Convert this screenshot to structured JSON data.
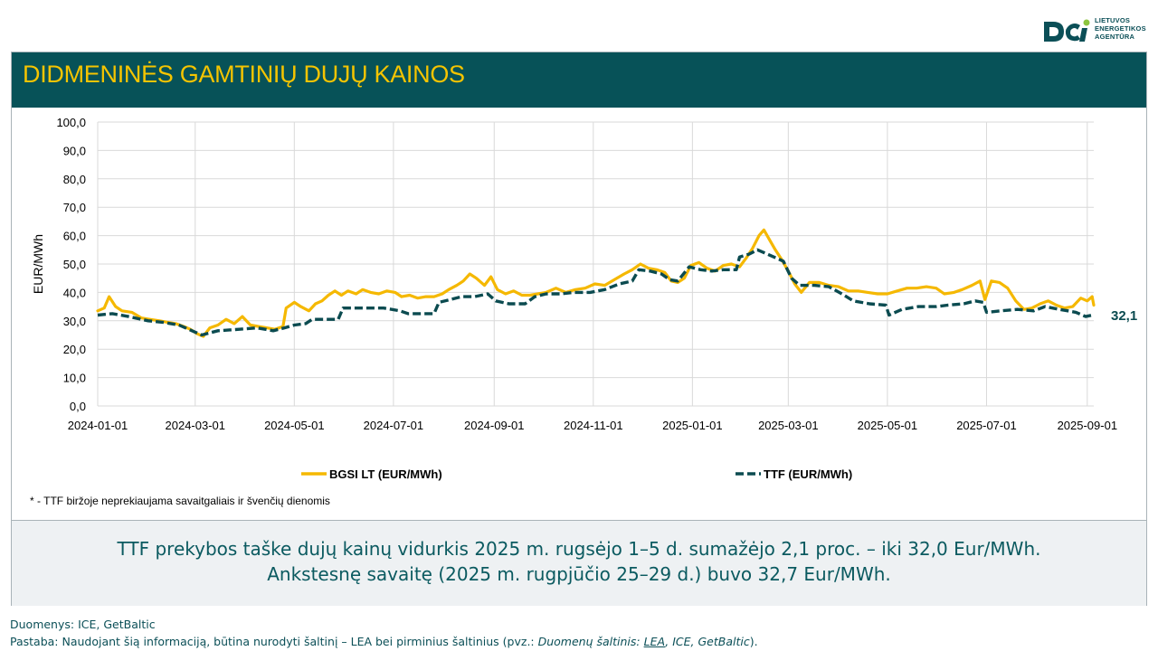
{
  "logo": {
    "lines": [
      "LIETUVOS",
      "ENERGETIKOS",
      "AGENTŪRA"
    ],
    "colors": {
      "primary": "#0b4f57",
      "accent": "#8dc63f"
    }
  },
  "banner": {
    "title": "DIDMENINĖS GAMTINIŲ DUJŲ KAINOS"
  },
  "colors": {
    "banner_bg": "#075258",
    "title": "#f5c400",
    "bgsi": "#f5b800",
    "ttf": "#0b4b50"
  },
  "chart_data": {
    "type": "line",
    "title": "",
    "ylabel": "EUR/MWh",
    "ylim": [
      0,
      100
    ],
    "yticks": [
      "0,0",
      "10,0",
      "20,0",
      "30,0",
      "40,0",
      "50,0",
      "60,0",
      "70,0",
      "80,0",
      "90,0",
      "100,0"
    ],
    "xlim": [
      "2024-01-01",
      "2025-09-05"
    ],
    "xticks": [
      "2024-01-01",
      "2024-03-01",
      "2024-05-01",
      "2024-07-01",
      "2024-09-01",
      "2024-11-01",
      "2025-01-01",
      "2025-03-01",
      "2025-05-01",
      "2025-07-01",
      "2025-09-01"
    ],
    "grid": true,
    "legend": "bottom",
    "end_label": "32,1",
    "series": [
      {
        "name": "BGSI LT (EUR/MWh)",
        "style": "solid",
        "points": [
          [
            "2024-01-01",
            33.5
          ],
          [
            "2024-01-05",
            34.5
          ],
          [
            "2024-01-08",
            38.5
          ],
          [
            "2024-01-12",
            35.0
          ],
          [
            "2024-01-16",
            33.5
          ],
          [
            "2024-01-22",
            33.0
          ],
          [
            "2024-01-28",
            31.0
          ],
          [
            "2024-02-02",
            30.5
          ],
          [
            "2024-02-08",
            30.0
          ],
          [
            "2024-02-13",
            29.5
          ],
          [
            "2024-02-18",
            29.0
          ],
          [
            "2024-02-23",
            28.0
          ],
          [
            "2024-02-27",
            27.0
          ],
          [
            "2024-03-02",
            25.5
          ],
          [
            "2024-03-06",
            24.5
          ],
          [
            "2024-03-10",
            27.5
          ],
          [
            "2024-03-15",
            28.5
          ],
          [
            "2024-03-20",
            30.5
          ],
          [
            "2024-03-25",
            29.0
          ],
          [
            "2024-03-30",
            31.5
          ],
          [
            "2024-04-04",
            28.5
          ],
          [
            "2024-04-09",
            28.0
          ],
          [
            "2024-04-14",
            27.5
          ],
          [
            "2024-04-19",
            27.0
          ],
          [
            "2024-04-24",
            28.0
          ],
          [
            "2024-04-26",
            34.5
          ],
          [
            "2024-05-01",
            36.5
          ],
          [
            "2024-05-05",
            35.0
          ],
          [
            "2024-05-10",
            33.5
          ],
          [
            "2024-05-14",
            36.0
          ],
          [
            "2024-05-18",
            37.0
          ],
          [
            "2024-05-22",
            39.0
          ],
          [
            "2024-05-26",
            40.5
          ],
          [
            "2024-05-30",
            39.0
          ],
          [
            "2024-06-03",
            40.5
          ],
          [
            "2024-06-08",
            39.5
          ],
          [
            "2024-06-12",
            41.0
          ],
          [
            "2024-06-17",
            40.0
          ],
          [
            "2024-06-22",
            39.5
          ],
          [
            "2024-06-27",
            40.5
          ],
          [
            "2024-07-02",
            40.0
          ],
          [
            "2024-07-06",
            38.5
          ],
          [
            "2024-07-11",
            39.0
          ],
          [
            "2024-07-16",
            38.0
          ],
          [
            "2024-07-21",
            38.5
          ],
          [
            "2024-07-26",
            38.5
          ],
          [
            "2024-07-31",
            39.5
          ],
          [
            "2024-08-04",
            41.0
          ],
          [
            "2024-08-09",
            42.5
          ],
          [
            "2024-08-13",
            44.0
          ],
          [
            "2024-08-17",
            46.5
          ],
          [
            "2024-08-21",
            45.0
          ],
          [
            "2024-08-26",
            42.5
          ],
          [
            "2024-08-30",
            45.5
          ],
          [
            "2024-09-03",
            41.0
          ],
          [
            "2024-09-08",
            39.5
          ],
          [
            "2024-09-13",
            40.5
          ],
          [
            "2024-09-18",
            39.0
          ],
          [
            "2024-09-23",
            39.0
          ],
          [
            "2024-09-28",
            39.5
          ],
          [
            "2024-10-03",
            40.0
          ],
          [
            "2024-10-09",
            41.5
          ],
          [
            "2024-10-15",
            40.0
          ],
          [
            "2024-10-21",
            41.0
          ],
          [
            "2024-10-27",
            41.5
          ],
          [
            "2024-11-02",
            43.0
          ],
          [
            "2024-11-08",
            42.5
          ],
          [
            "2024-11-14",
            44.5
          ],
          [
            "2024-11-20",
            46.5
          ],
          [
            "2024-11-25",
            48.0
          ],
          [
            "2024-11-30",
            50.0
          ],
          [
            "2024-12-05",
            48.5
          ],
          [
            "2024-12-10",
            48.0
          ],
          [
            "2024-12-15",
            47.0
          ],
          [
            "2024-12-19",
            44.0
          ],
          [
            "2024-12-23",
            43.5
          ],
          [
            "2024-12-27",
            45.0
          ],
          [
            "2024-12-31",
            49.5
          ],
          [
            "2025-01-05",
            50.5
          ],
          [
            "2025-01-10",
            48.5
          ],
          [
            "2025-01-15",
            47.5
          ],
          [
            "2025-01-20",
            49.5
          ],
          [
            "2025-01-25",
            50.0
          ],
          [
            "2025-01-30",
            49.0
          ],
          [
            "2025-02-03",
            52.0
          ],
          [
            "2025-02-07",
            55.5
          ],
          [
            "2025-02-11",
            60.0
          ],
          [
            "2025-02-14",
            62.0
          ],
          [
            "2025-02-18",
            58.0
          ],
          [
            "2025-02-21",
            55.0
          ],
          [
            "2025-02-25",
            51.5
          ],
          [
            "2025-03-01",
            47.5
          ],
          [
            "2025-03-05",
            43.0
          ],
          [
            "2025-03-09",
            40.0
          ],
          [
            "2025-03-14",
            43.5
          ],
          [
            "2025-03-20",
            43.5
          ],
          [
            "2025-03-26",
            42.5
          ],
          [
            "2025-04-01",
            42.0
          ],
          [
            "2025-04-07",
            40.5
          ],
          [
            "2025-04-13",
            40.5
          ],
          [
            "2025-04-19",
            40.0
          ],
          [
            "2025-04-25",
            39.5
          ],
          [
            "2025-05-01",
            39.5
          ],
          [
            "2025-05-07",
            40.5
          ],
          [
            "2025-05-13",
            41.5
          ],
          [
            "2025-05-19",
            41.5
          ],
          [
            "2025-05-25",
            42.0
          ],
          [
            "2025-05-31",
            41.5
          ],
          [
            "2025-06-05",
            39.5
          ],
          [
            "2025-06-11",
            40.0
          ],
          [
            "2025-06-16",
            41.0
          ],
          [
            "2025-06-22",
            42.5
          ],
          [
            "2025-06-27",
            44.0
          ],
          [
            "2025-06-30",
            37.5
          ],
          [
            "2025-07-04",
            44.0
          ],
          [
            "2025-07-09",
            43.5
          ],
          [
            "2025-07-14",
            41.5
          ],
          [
            "2025-07-19",
            37.0
          ],
          [
            "2025-07-24",
            34.0
          ],
          [
            "2025-07-29",
            34.5
          ],
          [
            "2025-08-03",
            36.0
          ],
          [
            "2025-08-08",
            37.0
          ],
          [
            "2025-08-13",
            35.5
          ],
          [
            "2025-08-18",
            34.5
          ],
          [
            "2025-08-23",
            35.0
          ],
          [
            "2025-08-28",
            38.0
          ],
          [
            "2025-09-01",
            37.0
          ],
          [
            "2025-09-04",
            38.5
          ],
          [
            "2025-09-05",
            35.5
          ]
        ]
      },
      {
        "name": "TTF (EUR/MWh)",
        "style": "dashed",
        "points": [
          [
            "2024-01-01",
            32.0
          ],
          [
            "2024-01-10",
            32.5
          ],
          [
            "2024-01-20",
            31.5
          ],
          [
            "2024-02-01",
            30.0
          ],
          [
            "2024-02-10",
            29.5
          ],
          [
            "2024-02-20",
            28.5
          ],
          [
            "2024-02-28",
            26.5
          ],
          [
            "2024-03-05",
            25.0
          ],
          [
            "2024-03-15",
            26.5
          ],
          [
            "2024-03-28",
            27.0
          ],
          [
            "2024-04-08",
            27.5
          ],
          [
            "2024-04-18",
            26.5
          ],
          [
            "2024-04-25",
            27.5
          ],
          [
            "2024-05-01",
            28.5
          ],
          [
            "2024-05-08",
            29.0
          ],
          [
            "2024-05-12",
            30.5
          ],
          [
            "2024-05-20",
            30.5
          ],
          [
            "2024-05-28",
            30.5
          ],
          [
            "2024-05-31",
            34.5
          ],
          [
            "2024-06-06",
            34.5
          ],
          [
            "2024-06-15",
            34.5
          ],
          [
            "2024-06-25",
            34.5
          ],
          [
            "2024-07-05",
            33.5
          ],
          [
            "2024-07-10",
            32.5
          ],
          [
            "2024-07-18",
            32.5
          ],
          [
            "2024-07-26",
            32.5
          ],
          [
            "2024-07-29",
            36.5
          ],
          [
            "2024-08-05",
            37.5
          ],
          [
            "2024-08-12",
            38.5
          ],
          [
            "2024-08-20",
            38.5
          ],
          [
            "2024-08-28",
            39.5
          ],
          [
            "2024-09-02",
            37.0
          ],
          [
            "2024-09-10",
            36.0
          ],
          [
            "2024-09-20",
            36.0
          ],
          [
            "2024-09-26",
            38.5
          ],
          [
            "2024-10-03",
            39.5
          ],
          [
            "2024-10-12",
            39.5
          ],
          [
            "2024-10-20",
            40.0
          ],
          [
            "2024-10-30",
            40.0
          ],
          [
            "2024-11-08",
            41.0
          ],
          [
            "2024-11-17",
            43.0
          ],
          [
            "2024-11-25",
            44.0
          ],
          [
            "2024-11-29",
            48.0
          ],
          [
            "2024-12-06",
            47.5
          ],
          [
            "2024-12-13",
            46.5
          ],
          [
            "2024-12-18",
            44.5
          ],
          [
            "2024-12-23",
            44.0
          ],
          [
            "2024-12-30",
            49.0
          ],
          [
            "2025-01-06",
            48.0
          ],
          [
            "2025-01-13",
            47.5
          ],
          [
            "2025-01-20",
            48.0
          ],
          [
            "2025-01-28",
            48.0
          ],
          [
            "2025-01-30",
            52.5
          ],
          [
            "2025-02-05",
            53.5
          ],
          [
            "2025-02-10",
            55.0
          ],
          [
            "2025-02-16",
            53.5
          ],
          [
            "2025-02-22",
            52.0
          ],
          [
            "2025-02-26",
            51.0
          ],
          [
            "2025-03-03",
            45.0
          ],
          [
            "2025-03-08",
            42.5
          ],
          [
            "2025-03-17",
            42.5
          ],
          [
            "2025-03-26",
            42.0
          ],
          [
            "2025-04-03",
            39.5
          ],
          [
            "2025-04-10",
            37.0
          ],
          [
            "2025-04-20",
            36.0
          ],
          [
            "2025-04-30",
            35.5
          ],
          [
            "2025-05-02",
            32.0
          ],
          [
            "2025-05-10",
            34.0
          ],
          [
            "2025-05-20",
            35.0
          ],
          [
            "2025-05-31",
            35.0
          ],
          [
            "2025-06-07",
            35.5
          ],
          [
            "2025-06-17",
            36.0
          ],
          [
            "2025-06-24",
            37.0
          ],
          [
            "2025-06-29",
            36.5
          ],
          [
            "2025-07-01",
            33.0
          ],
          [
            "2025-07-10",
            33.5
          ],
          [
            "2025-07-20",
            34.0
          ],
          [
            "2025-07-30",
            33.5
          ],
          [
            "2025-08-06",
            35.0
          ],
          [
            "2025-08-15",
            34.0
          ],
          [
            "2025-08-25",
            33.0
          ],
          [
            "2025-08-31",
            31.5
          ],
          [
            "2025-09-05",
            32.1
          ]
        ]
      }
    ]
  },
  "footnote": "* - TTF biržoje neprekiaujama savaitgaliais ir švenčių dienomis",
  "summary": {
    "line1": "TTF prekybos taške dujų kainų vidurkis 2025 m. rugsėjo 1–5 d. sumažėjo 2,1 proc. – iki 32,0 Eur/MWh.",
    "line2": "Ankstesnę savaitę (2025 m. rugpjūčio 25–29 d.) buvo 32,7 Eur/MWh."
  },
  "sources": {
    "line1": "Duomenys: ICE, GetBaltic",
    "line2_prefix": "Pastaba: Naudojant šią informaciją, būtina nurodyti šaltinį – LEA bei pirminius šaltinius (pvz.: ",
    "line2_italic": "Duomenų šaltinis: ",
    "line2_link": "LEA",
    "line2_rest": ", ICE, GetBaltic",
    "line2_end": ")."
  }
}
